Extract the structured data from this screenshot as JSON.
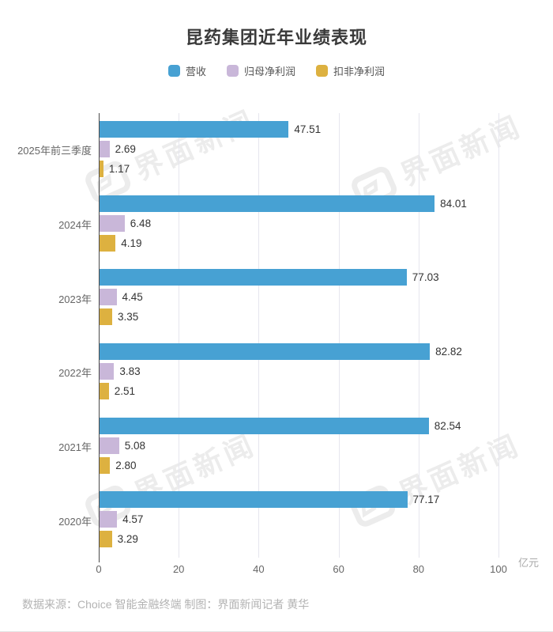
{
  "title": "昆药集团近年业绩表现",
  "legend": [
    {
      "label": "营收",
      "color": "#47a1d3"
    },
    {
      "label": "归母净利润",
      "color": "#c9b7d9"
    },
    {
      "label": "扣非净利润",
      "color": "#ddb140"
    }
  ],
  "chart_data": {
    "type": "bar",
    "orientation": "horizontal",
    "title": "昆药集团近年业绩表现",
    "categories": [
      "2025年前三季度",
      "2024年",
      "2023年",
      "2022年",
      "2021年",
      "2020年"
    ],
    "series": [
      {
        "name": "营收",
        "color": "#47a1d3",
        "values": [
          47.51,
          84.01,
          77.03,
          82.82,
          82.54,
          77.17
        ]
      },
      {
        "name": "归母净利润",
        "color": "#c9b7d9",
        "values": [
          2.69,
          6.48,
          4.45,
          3.83,
          5.08,
          4.57
        ]
      },
      {
        "name": "扣非净利润",
        "color": "#ddb140",
        "values": [
          1.17,
          4.19,
          3.35,
          2.51,
          2.8,
          3.29
        ]
      }
    ],
    "xlim": [
      0,
      100
    ],
    "x_ticks": [
      0,
      20,
      40,
      60,
      80,
      100
    ],
    "unit": "亿元",
    "grid": true,
    "legend_position": "top"
  },
  "watermark": {
    "text": "界面新闻"
  },
  "footer": "数据来源：Choice 智能金融终端 制图：界面新闻记者 黄华"
}
